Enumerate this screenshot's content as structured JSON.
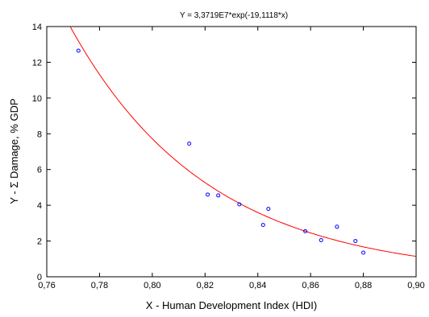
{
  "chart_data": {
    "type": "scatter",
    "title": "Y = 3,3719E7*exp(-19,1118*x)",
    "xlabel": "X - Human Development Index (HDI)",
    "ylabel": "Y - Σ Damage, % GDP",
    "xlim": [
      0.76,
      0.9
    ],
    "ylim": [
      0,
      14
    ],
    "xticks": [
      "0,76",
      "0,78",
      "0,80",
      "0,82",
      "0,84",
      "0,86",
      "0,88",
      "0,90"
    ],
    "yticks": [
      "0",
      "2",
      "4",
      "6",
      "8",
      "10",
      "12",
      "14"
    ],
    "x_tick_values": [
      0.76,
      0.78,
      0.8,
      0.82,
      0.84,
      0.86,
      0.88,
      0.9
    ],
    "y_tick_values": [
      0,
      2,
      4,
      6,
      8,
      10,
      12,
      14
    ],
    "grid": false,
    "points": [
      {
        "x": 0.772,
        "y": 12.65
      },
      {
        "x": 0.814,
        "y": 7.45
      },
      {
        "x": 0.821,
        "y": 4.6
      },
      {
        "x": 0.825,
        "y": 4.55
      },
      {
        "x": 0.833,
        "y": 4.05
      },
      {
        "x": 0.842,
        "y": 2.9
      },
      {
        "x": 0.844,
        "y": 3.8
      },
      {
        "x": 0.858,
        "y": 2.55
      },
      {
        "x": 0.864,
        "y": 2.05
      },
      {
        "x": 0.87,
        "y": 2.8
      },
      {
        "x": 0.877,
        "y": 2.0
      },
      {
        "x": 0.88,
        "y": 1.35
      }
    ],
    "fit": {
      "a": 33719000,
      "b": -19.1118
    },
    "point_color": "#0000ff",
    "fit_color": "#ff0000"
  }
}
